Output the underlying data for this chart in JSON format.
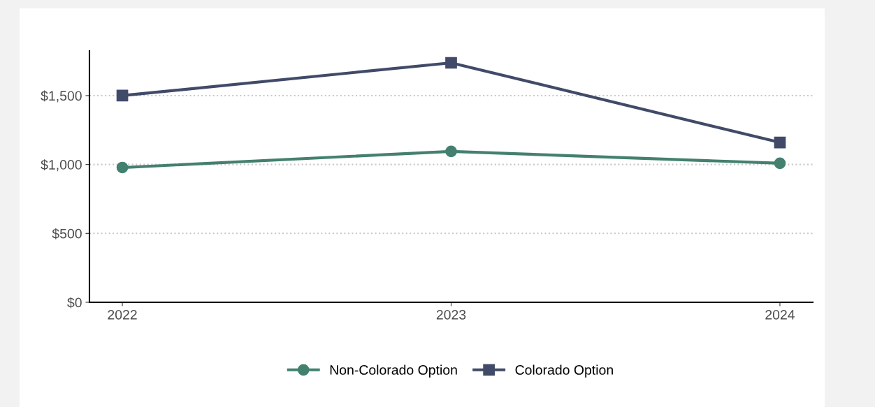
{
  "chart_data": {
    "type": "line",
    "x": [
      2022,
      2023,
      2024
    ],
    "series": [
      {
        "name": "Non-Colorado Option",
        "color": "#44806f",
        "values": [
          978,
          1095,
          1009
        ],
        "marker": "circle"
      },
      {
        "name": "Colorado Option",
        "color": "#414a68",
        "values": [
          1500,
          1738,
          1160
        ],
        "marker": "square"
      }
    ],
    "xlim": [
      2021.9,
      2024.1
    ],
    "xticks": [
      2022,
      2023,
      2024
    ],
    "ylim": [
      0,
      1824
    ],
    "yticks": [
      {
        "value": 0,
        "label": "$0"
      },
      {
        "value": 500,
        "label": "$500"
      },
      {
        "value": 1000,
        "label": "$1,000"
      },
      {
        "value": 1500,
        "label": "$1,500"
      }
    ],
    "grid": "y",
    "legend": "bottom",
    "line_style": "solid"
  }
}
